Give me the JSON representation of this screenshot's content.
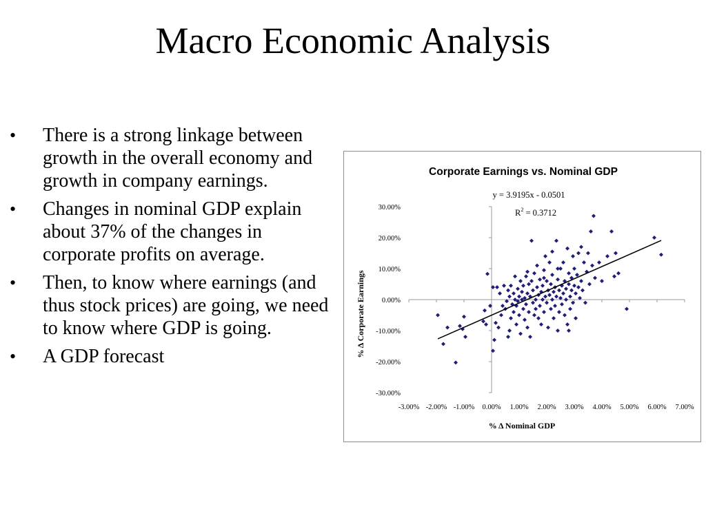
{
  "slide": {
    "title": "Macro Economic Analysis",
    "bullet_glyph": "•",
    "bullets": [
      "There is a strong linkage between growth in the overall economy and growth in company earnings.",
      "Changes in nominal GDP explain about 37% of  the changes in corporate profits on average.",
      "Then, to know where earnings (and thus stock prices) are going, we need to know where GDP is going.",
      "A GDP forecast"
    ]
  },
  "chart_data": {
    "type": "scatter",
    "title": "Corporate Earnings vs. Nominal GDP",
    "xlabel": "% Δ Nominal GDP",
    "ylabel": "% Δ Corporate Earnings",
    "equation": "y = 3.9195x - 0.0501",
    "r2_label": "R",
    "r2_sup": "2",
    "r2_value": " = 0.3712",
    "xlim": [
      -0.03,
      0.07
    ],
    "ylim": [
      -0.3,
      0.3
    ],
    "x_ticks": [
      "-3.00%",
      "-2.00%",
      "-1.00%",
      "0.00%",
      "1.00%",
      "2.00%",
      "3.00%",
      "4.00%",
      "5.00%",
      "6.00%",
      "7.00%"
    ],
    "y_ticks": [
      "30.00%",
      "20.00%",
      "10.00%",
      "0.00%",
      "-10.00%",
      "-20.00%",
      "-30.00%"
    ],
    "grid": false,
    "legend": "none",
    "marker_color": "#1f1f7a",
    "trendline": {
      "slope": 3.9195,
      "intercept": -0.0501,
      "x_range": [
        -0.0195,
        0.0615
      ]
    },
    "points": [
      [
        -0.0195,
        -0.05
      ],
      [
        -0.0175,
        -0.143
      ],
      [
        -0.016,
        -0.09
      ],
      [
        -0.013,
        -0.203
      ],
      [
        -0.0115,
        -0.085
      ],
      [
        -0.0105,
        -0.095
      ],
      [
        -0.01,
        -0.055
      ],
      [
        -0.0095,
        -0.12
      ],
      [
        -0.003,
        -0.07
      ],
      [
        -0.0025,
        -0.035
      ],
      [
        -0.002,
        -0.08
      ],
      [
        -0.0015,
        0.083
      ],
      [
        -0.0005,
        -0.02
      ],
      [
        0.0005,
        -0.165
      ],
      [
        0.001,
        -0.13
      ],
      [
        0.0015,
        -0.075
      ],
      [
        0.002,
        0.04
      ],
      [
        0.0025,
        -0.09
      ],
      [
        0.003,
        0.02
      ],
      [
        0.0035,
        -0.05
      ],
      [
        0.004,
        -0.02
      ],
      [
        0.0045,
        0.045
      ],
      [
        0.005,
        -0.03
      ],
      [
        0.0055,
        -0.005
      ],
      [
        0.006,
        0.03
      ],
      [
        0.0065,
        -0.1
      ],
      [
        0.0065,
        0.01
      ],
      [
        0.007,
        0.045
      ],
      [
        0.007,
        -0.06
      ],
      [
        0.0075,
        -0.015
      ],
      [
        0.008,
        0.02
      ],
      [
        0.008,
        -0.04
      ],
      [
        0.0085,
        0.075
      ],
      [
        0.0085,
        0.0
      ],
      [
        0.009,
        -0.02
      ],
      [
        0.009,
        -0.08
      ],
      [
        0.0095,
        0.035
      ],
      [
        0.0095,
        -0.005
      ],
      [
        0.01,
        0.01
      ],
      [
        0.01,
        -0.05
      ],
      [
        0.0105,
        0.06
      ],
      [
        0.0105,
        -0.11
      ],
      [
        0.011,
        0.0
      ],
      [
        0.011,
        0.025
      ],
      [
        0.0115,
        -0.03
      ],
      [
        0.0115,
        0.045
      ],
      [
        0.012,
        -0.065
      ],
      [
        0.012,
        0.005
      ],
      [
        0.0125,
        0.075
      ],
      [
        0.0125,
        -0.015
      ],
      [
        0.013,
        0.02
      ],
      [
        0.013,
        -0.09
      ],
      [
        0.0135,
        0.05
      ],
      [
        0.0135,
        -0.04
      ],
      [
        0.014,
        0.01
      ],
      [
        0.014,
        -0.12
      ],
      [
        0.0145,
        0.19
      ],
      [
        0.0145,
        0.06
      ],
      [
        0.015,
        -0.01
      ],
      [
        0.015,
        0.03
      ],
      [
        0.0155,
        -0.05
      ],
      [
        0.0155,
        0.085
      ],
      [
        0.016,
        0.0
      ],
      [
        0.016,
        -0.03
      ],
      [
        0.0165,
        0.04
      ],
      [
        0.0165,
        0.11
      ],
      [
        0.017,
        -0.06
      ],
      [
        0.017,
        0.015
      ],
      [
        0.0175,
        0.065
      ],
      [
        0.0175,
        -0.02
      ],
      [
        0.018,
        0.025
      ],
      [
        0.018,
        -0.08
      ],
      [
        0.0185,
        0.045
      ],
      [
        0.0185,
        0.0
      ],
      [
        0.019,
        0.095
      ],
      [
        0.019,
        -0.04
      ],
      [
        0.0195,
        0.01
      ],
      [
        0.0195,
        0.14
      ],
      [
        0.02,
        -0.01
      ],
      [
        0.02,
        0.06
      ],
      [
        0.0205,
        0.03
      ],
      [
        0.0205,
        -0.09
      ],
      [
        0.021,
        0.015
      ],
      [
        0.021,
        0.12
      ],
      [
        0.0215,
        -0.03
      ],
      [
        0.0215,
        0.05
      ],
      [
        0.022,
        0.0
      ],
      [
        0.022,
        0.08
      ],
      [
        0.0225,
        -0.06
      ],
      [
        0.0225,
        0.025
      ],
      [
        0.023,
        0.04
      ],
      [
        0.023,
        -0.02
      ],
      [
        0.0235,
        0.19
      ],
      [
        0.0235,
        0.01
      ],
      [
        0.024,
        -0.1
      ],
      [
        0.024,
        0.065
      ],
      [
        0.0245,
        0.03
      ],
      [
        0.0245,
        -0.04
      ],
      [
        0.025,
        0.1
      ],
      [
        0.025,
        0.005
      ],
      [
        0.0255,
        0.045
      ],
      [
        0.0255,
        -0.015
      ],
      [
        0.026,
        0.02
      ],
      [
        0.026,
        0.12
      ],
      [
        0.0265,
        -0.05
      ],
      [
        0.0265,
        0.06
      ],
      [
        0.027,
        0.035
      ],
      [
        0.027,
        0.0
      ],
      [
        0.0275,
        0.165
      ],
      [
        0.0275,
        -0.08
      ],
      [
        0.028,
        0.05
      ],
      [
        0.028,
        0.085
      ],
      [
        0.0285,
        0.01
      ],
      [
        0.0285,
        -0.03
      ],
      [
        0.029,
        0.07
      ],
      [
        0.029,
        0.03
      ],
      [
        0.0295,
        0.14
      ],
      [
        0.0295,
        -0.01
      ],
      [
        0.03,
        0.045
      ],
      [
        0.03,
        0.1
      ],
      [
        0.0305,
        0.02
      ],
      [
        0.0305,
        -0.06
      ],
      [
        0.031,
        0.08
      ],
      [
        0.0315,
        0.04
      ],
      [
        0.0315,
        0.15
      ],
      [
        0.032,
        0.005
      ],
      [
        0.0325,
        0.17
      ],
      [
        0.0325,
        0.06
      ],
      [
        0.033,
        0.03
      ],
      [
        0.0335,
        0.12
      ],
      [
        0.034,
        -0.01
      ],
      [
        0.0345,
        0.09
      ],
      [
        0.035,
        0.15
      ],
      [
        0.0355,
        0.05
      ],
      [
        0.036,
        0.22
      ],
      [
        0.0365,
        0.11
      ],
      [
        0.037,
        0.27
      ],
      [
        0.0375,
        0.07
      ],
      [
        0.039,
        0.12
      ],
      [
        0.04,
        0.06
      ],
      [
        0.042,
        0.14
      ],
      [
        0.0435,
        0.22
      ],
      [
        0.0445,
        0.075
      ],
      [
        0.045,
        0.15
      ],
      [
        0.046,
        0.085
      ],
      [
        0.049,
        -0.03
      ],
      [
        0.059,
        0.2
      ],
      [
        0.0615,
        0.145
      ],
      [
        0.0005,
        0.04
      ],
      [
        0.006,
        -0.12
      ],
      [
        0.013,
        0.09
      ],
      [
        0.022,
        0.155
      ],
      [
        0.028,
        -0.1
      ],
      [
        0.019,
        0.07
      ],
      [
        0.024,
        0.1
      ]
    ]
  }
}
